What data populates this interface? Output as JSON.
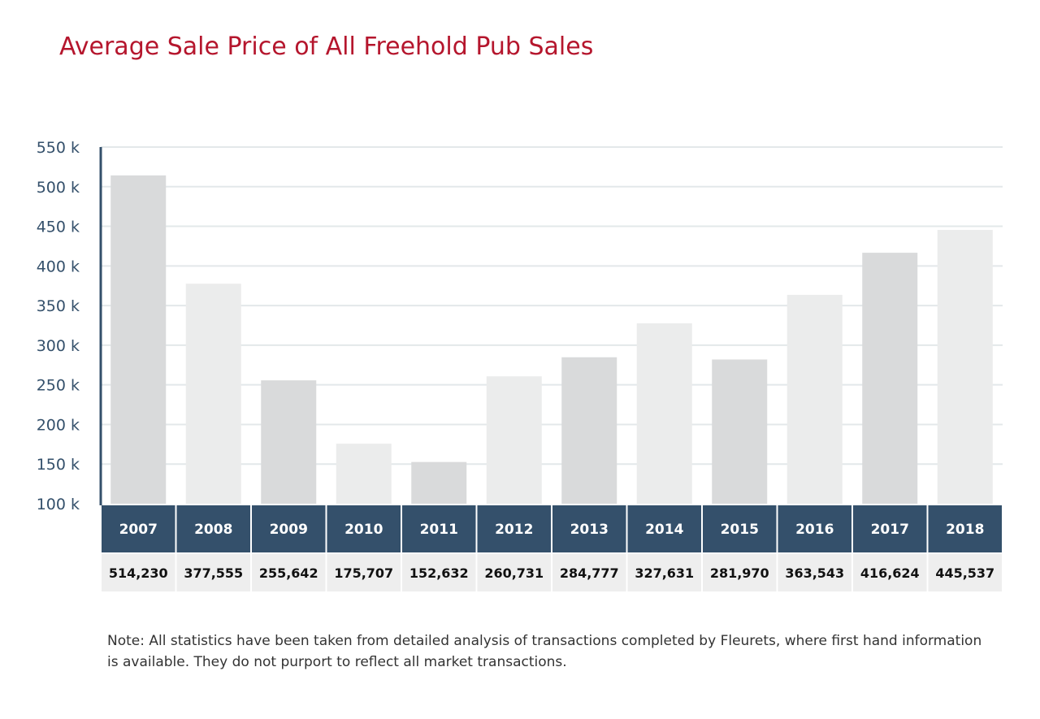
{
  "title": "Average Sale Price of All Freehold Pub Sales",
  "note": "Note: All statistics have been taken from detailed analysis of transactions completed by Fleurets, where first hand information is available. They do not purport to reflect all market transactions.",
  "colors": {
    "title": "#b5162d",
    "bar_dark": "#d9dadb",
    "bar_light": "#ebecec",
    "category_band": "#34506b",
    "value_band": "#eeeeee",
    "gridline": "#e3e8ea",
    "axis": "#34506b"
  },
  "chart_data": {
    "type": "bar",
    "title": "Average Sale Price of All Freehold Pub Sales",
    "categories": [
      "2007",
      "2008",
      "2009",
      "2010",
      "2011",
      "2012",
      "2013",
      "2014",
      "2015",
      "2016",
      "2017",
      "2018"
    ],
    "values": [
      514230,
      377555,
      255642,
      175707,
      152632,
      260731,
      284777,
      327631,
      281970,
      363543,
      416624,
      445537
    ],
    "value_labels": [
      "514,230",
      "377,555",
      "255,642",
      "175,707",
      "152,632",
      "260,731",
      "284,777",
      "327,631",
      "281,970",
      "363,543",
      "416,624",
      "445,537"
    ],
    "ylim": [
      100000,
      550000
    ],
    "yticks": [
      100000,
      150000,
      200000,
      250000,
      300000,
      350000,
      400000,
      450000,
      500000,
      550000
    ],
    "ytick_labels": [
      "100 k",
      "150 k",
      "200 k",
      "250 k",
      "300 k",
      "350 k",
      "400 k",
      "450 k",
      "500 k",
      "550 k"
    ],
    "xlabel": "",
    "ylabel": "",
    "grid": true,
    "legend": "none"
  }
}
